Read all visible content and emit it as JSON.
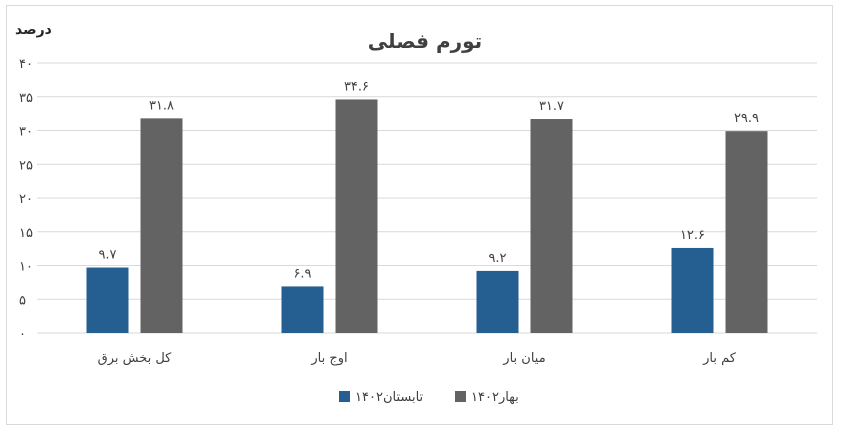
{
  "chart_data": {
    "type": "bar",
    "title": "تورم فصلی",
    "ylabel": "درصد",
    "ylim": [
      0,
      40
    ],
    "yticks": [
      "۰",
      "۵",
      "۱۰",
      "۱۵",
      "۲۰",
      "۲۵",
      "۳۰",
      "۳۵",
      "۴۰"
    ],
    "grid": true,
    "categories": [
      "کم بار",
      "میان بار",
      "اوج بار",
      "کل بخش برق"
    ],
    "series": [
      {
        "name": "تابستان۱۴۰۲",
        "color": "#255e91",
        "values": [
          12.6,
          9.2,
          6.9,
          9.7
        ],
        "labels": [
          "۱۲.۶",
          "۹.۲",
          "۶.۹",
          "۹.۷"
        ]
      },
      {
        "name": "بهار۱۴۰۲",
        "color": "#636363",
        "values": [
          29.9,
          31.7,
          34.6,
          31.8
        ],
        "labels": [
          "۲۹.۹",
          "۳۱.۷",
          "۳۴.۶",
          "۳۱.۸"
        ]
      }
    ],
    "legend_position": "bottom",
    "category_order": "right-to-left"
  }
}
